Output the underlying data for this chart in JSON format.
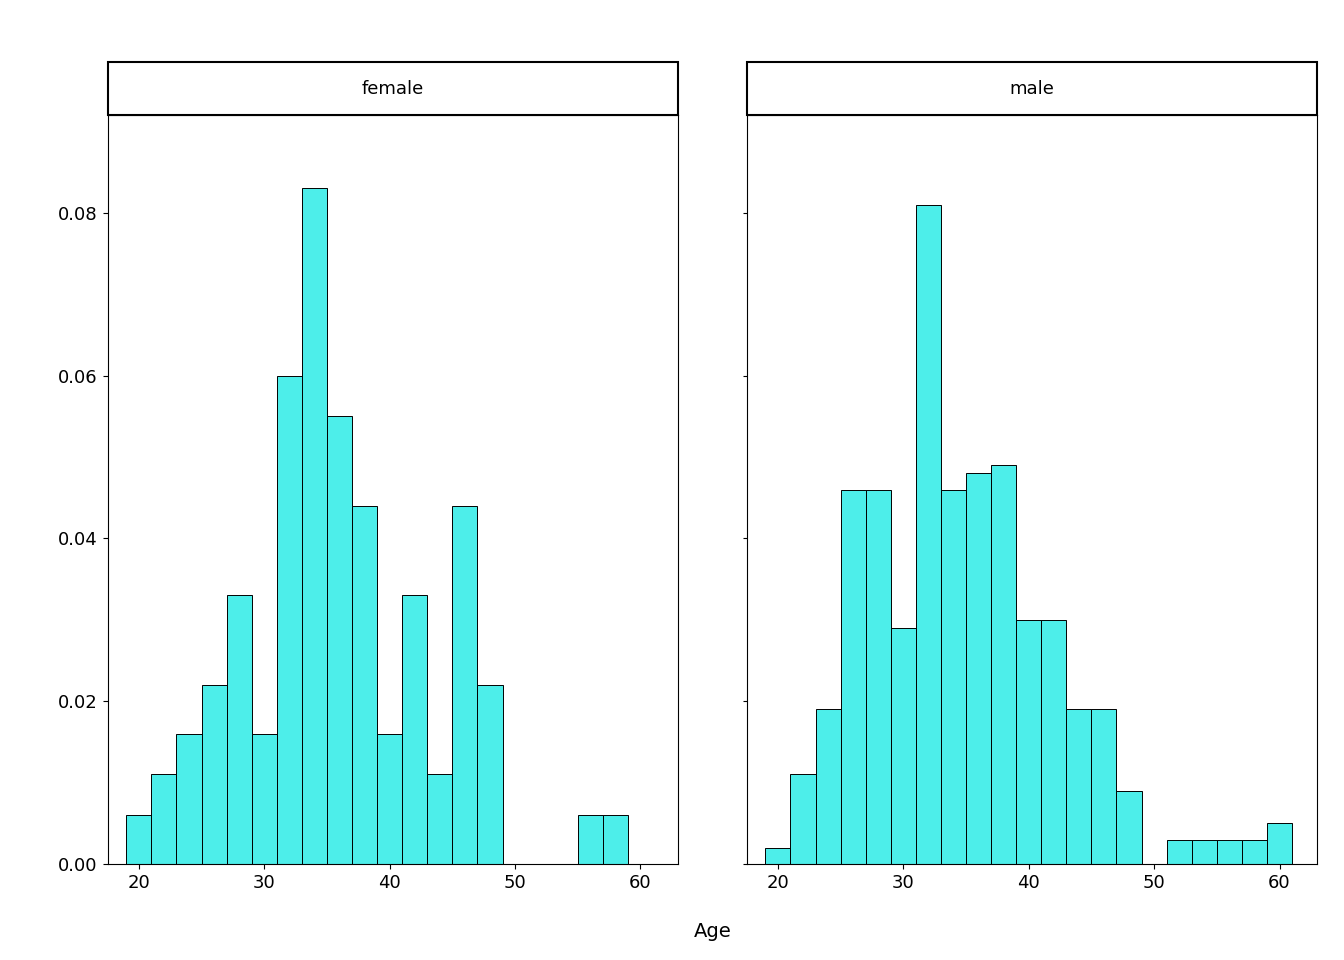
{
  "female_bars": {
    "bin_starts": [
      19,
      21,
      23,
      25,
      27,
      29,
      31,
      33,
      35,
      37,
      39,
      41,
      43,
      45,
      47,
      49,
      51,
      53,
      55,
      57,
      59
    ],
    "heights": [
      0.006,
      0.011,
      0.016,
      0.022,
      0.033,
      0.016,
      0.06,
      0.083,
      0.055,
      0.044,
      0.016,
      0.033,
      0.011,
      0.044,
      0.022,
      0.0,
      0.0,
      0.0,
      0.006,
      0.006,
      0.0
    ]
  },
  "male_bars": {
    "bin_starts": [
      19,
      21,
      23,
      25,
      27,
      29,
      31,
      33,
      35,
      37,
      39,
      41,
      43,
      45,
      47,
      49,
      51,
      53,
      55,
      57,
      59
    ],
    "heights": [
      0.002,
      0.011,
      0.019,
      0.046,
      0.046,
      0.029,
      0.081,
      0.046,
      0.048,
      0.049,
      0.03,
      0.03,
      0.019,
      0.019,
      0.009,
      0.0,
      0.003,
      0.003,
      0.003,
      0.003,
      0.005
    ]
  },
  "bar_color": "#4DEEEA",
  "bar_edge_color": "#000000",
  "bar_width": 2.0,
  "xlim_female": [
    17.5,
    63
  ],
  "xlim_male": [
    17.5,
    63
  ],
  "ylim": [
    0,
    0.092
  ],
  "xticks": [
    20,
    30,
    40,
    50,
    60
  ],
  "yticks": [
    0.0,
    0.02,
    0.04,
    0.06,
    0.08
  ],
  "xlabel": "Age",
  "panel_labels": [
    "female",
    "male"
  ],
  "background_color": "#ffffff",
  "font_size": 13,
  "label_fontsize": 14
}
